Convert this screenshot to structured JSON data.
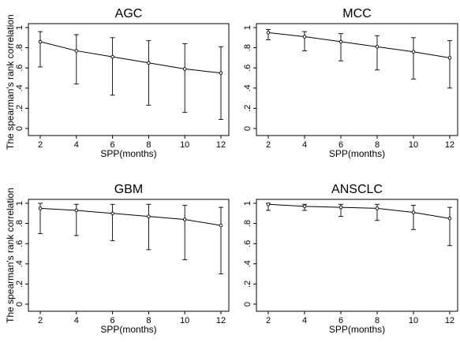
{
  "figure": {
    "y_axis_label": "The spearman's rank correlation"
  },
  "chart_data": [
    {
      "type": "line",
      "title": "AGC",
      "xlabel": "SPP(months)",
      "ylabel": "The spearman's rank correlation",
      "x": [
        2,
        4,
        6,
        8,
        10,
        12
      ],
      "xticks": [
        "2",
        "4",
        "6",
        "8",
        "10",
        "12"
      ],
      "yticks": [
        "0",
        ".2",
        ".4",
        ".6",
        ".8",
        "1"
      ],
      "xlim": [
        2,
        12
      ],
      "ylim": [
        0,
        1
      ],
      "series": [
        {
          "values": [
            0.86,
            0.77,
            0.71,
            0.65,
            0.59,
            0.55
          ],
          "lower": [
            0.61,
            0.44,
            0.33,
            0.23,
            0.16,
            0.09
          ],
          "upper": [
            0.96,
            0.93,
            0.9,
            0.87,
            0.84,
            0.81
          ]
        }
      ]
    },
    {
      "type": "line",
      "title": "MCC",
      "xlabel": "SPP(months)",
      "ylabel": "",
      "x": [
        2,
        4,
        6,
        8,
        10,
        12
      ],
      "xticks": [
        "2",
        "4",
        "6",
        "8",
        "10",
        "12"
      ],
      "yticks": [
        "0",
        ".2",
        ".4",
        ".6",
        ".8",
        "1"
      ],
      "xlim": [
        2,
        12
      ],
      "ylim": [
        0,
        1
      ],
      "series": [
        {
          "values": [
            0.95,
            0.91,
            0.86,
            0.81,
            0.76,
            0.7
          ],
          "lower": [
            0.88,
            0.77,
            0.67,
            0.58,
            0.49,
            0.4
          ],
          "upper": [
            0.98,
            0.96,
            0.94,
            0.92,
            0.9,
            0.87
          ]
        }
      ]
    },
    {
      "type": "line",
      "title": "GBM",
      "xlabel": "SPP(months)",
      "ylabel": "The spearman's rank correlation",
      "x": [
        2,
        4,
        6,
        8,
        10,
        12
      ],
      "xticks": [
        "2",
        "4",
        "6",
        "8",
        "10",
        "12"
      ],
      "yticks": [
        "0",
        ".2",
        ".4",
        ".6",
        ".8",
        "1"
      ],
      "xlim": [
        2,
        12
      ],
      "ylim": [
        0,
        1
      ],
      "series": [
        {
          "values": [
            0.95,
            0.93,
            0.9,
            0.87,
            0.84,
            0.78
          ],
          "lower": [
            0.7,
            0.68,
            0.63,
            0.54,
            0.44,
            0.3
          ],
          "upper": [
            1.0,
            0.99,
            0.99,
            0.99,
            0.98,
            0.96
          ]
        }
      ]
    },
    {
      "type": "line",
      "title": "ANSCLC",
      "xlabel": "SPP(months)",
      "ylabel": "",
      "x": [
        2,
        4,
        6,
        8,
        10,
        12
      ],
      "xticks": [
        "2",
        "4",
        "6",
        "8",
        "10",
        "12"
      ],
      "yticks": [
        "0",
        ".2",
        ".4",
        ".6",
        ".8",
        "1"
      ],
      "xlim": [
        2,
        12
      ],
      "ylim": [
        0,
        1
      ],
      "series": [
        {
          "values": [
            0.99,
            0.97,
            0.96,
            0.95,
            0.91,
            0.85
          ],
          "lower": [
            0.93,
            0.93,
            0.87,
            0.83,
            0.74,
            0.58
          ],
          "upper": [
            1.0,
            0.99,
            0.99,
            0.99,
            0.98,
            0.96
          ]
        }
      ]
    }
  ]
}
